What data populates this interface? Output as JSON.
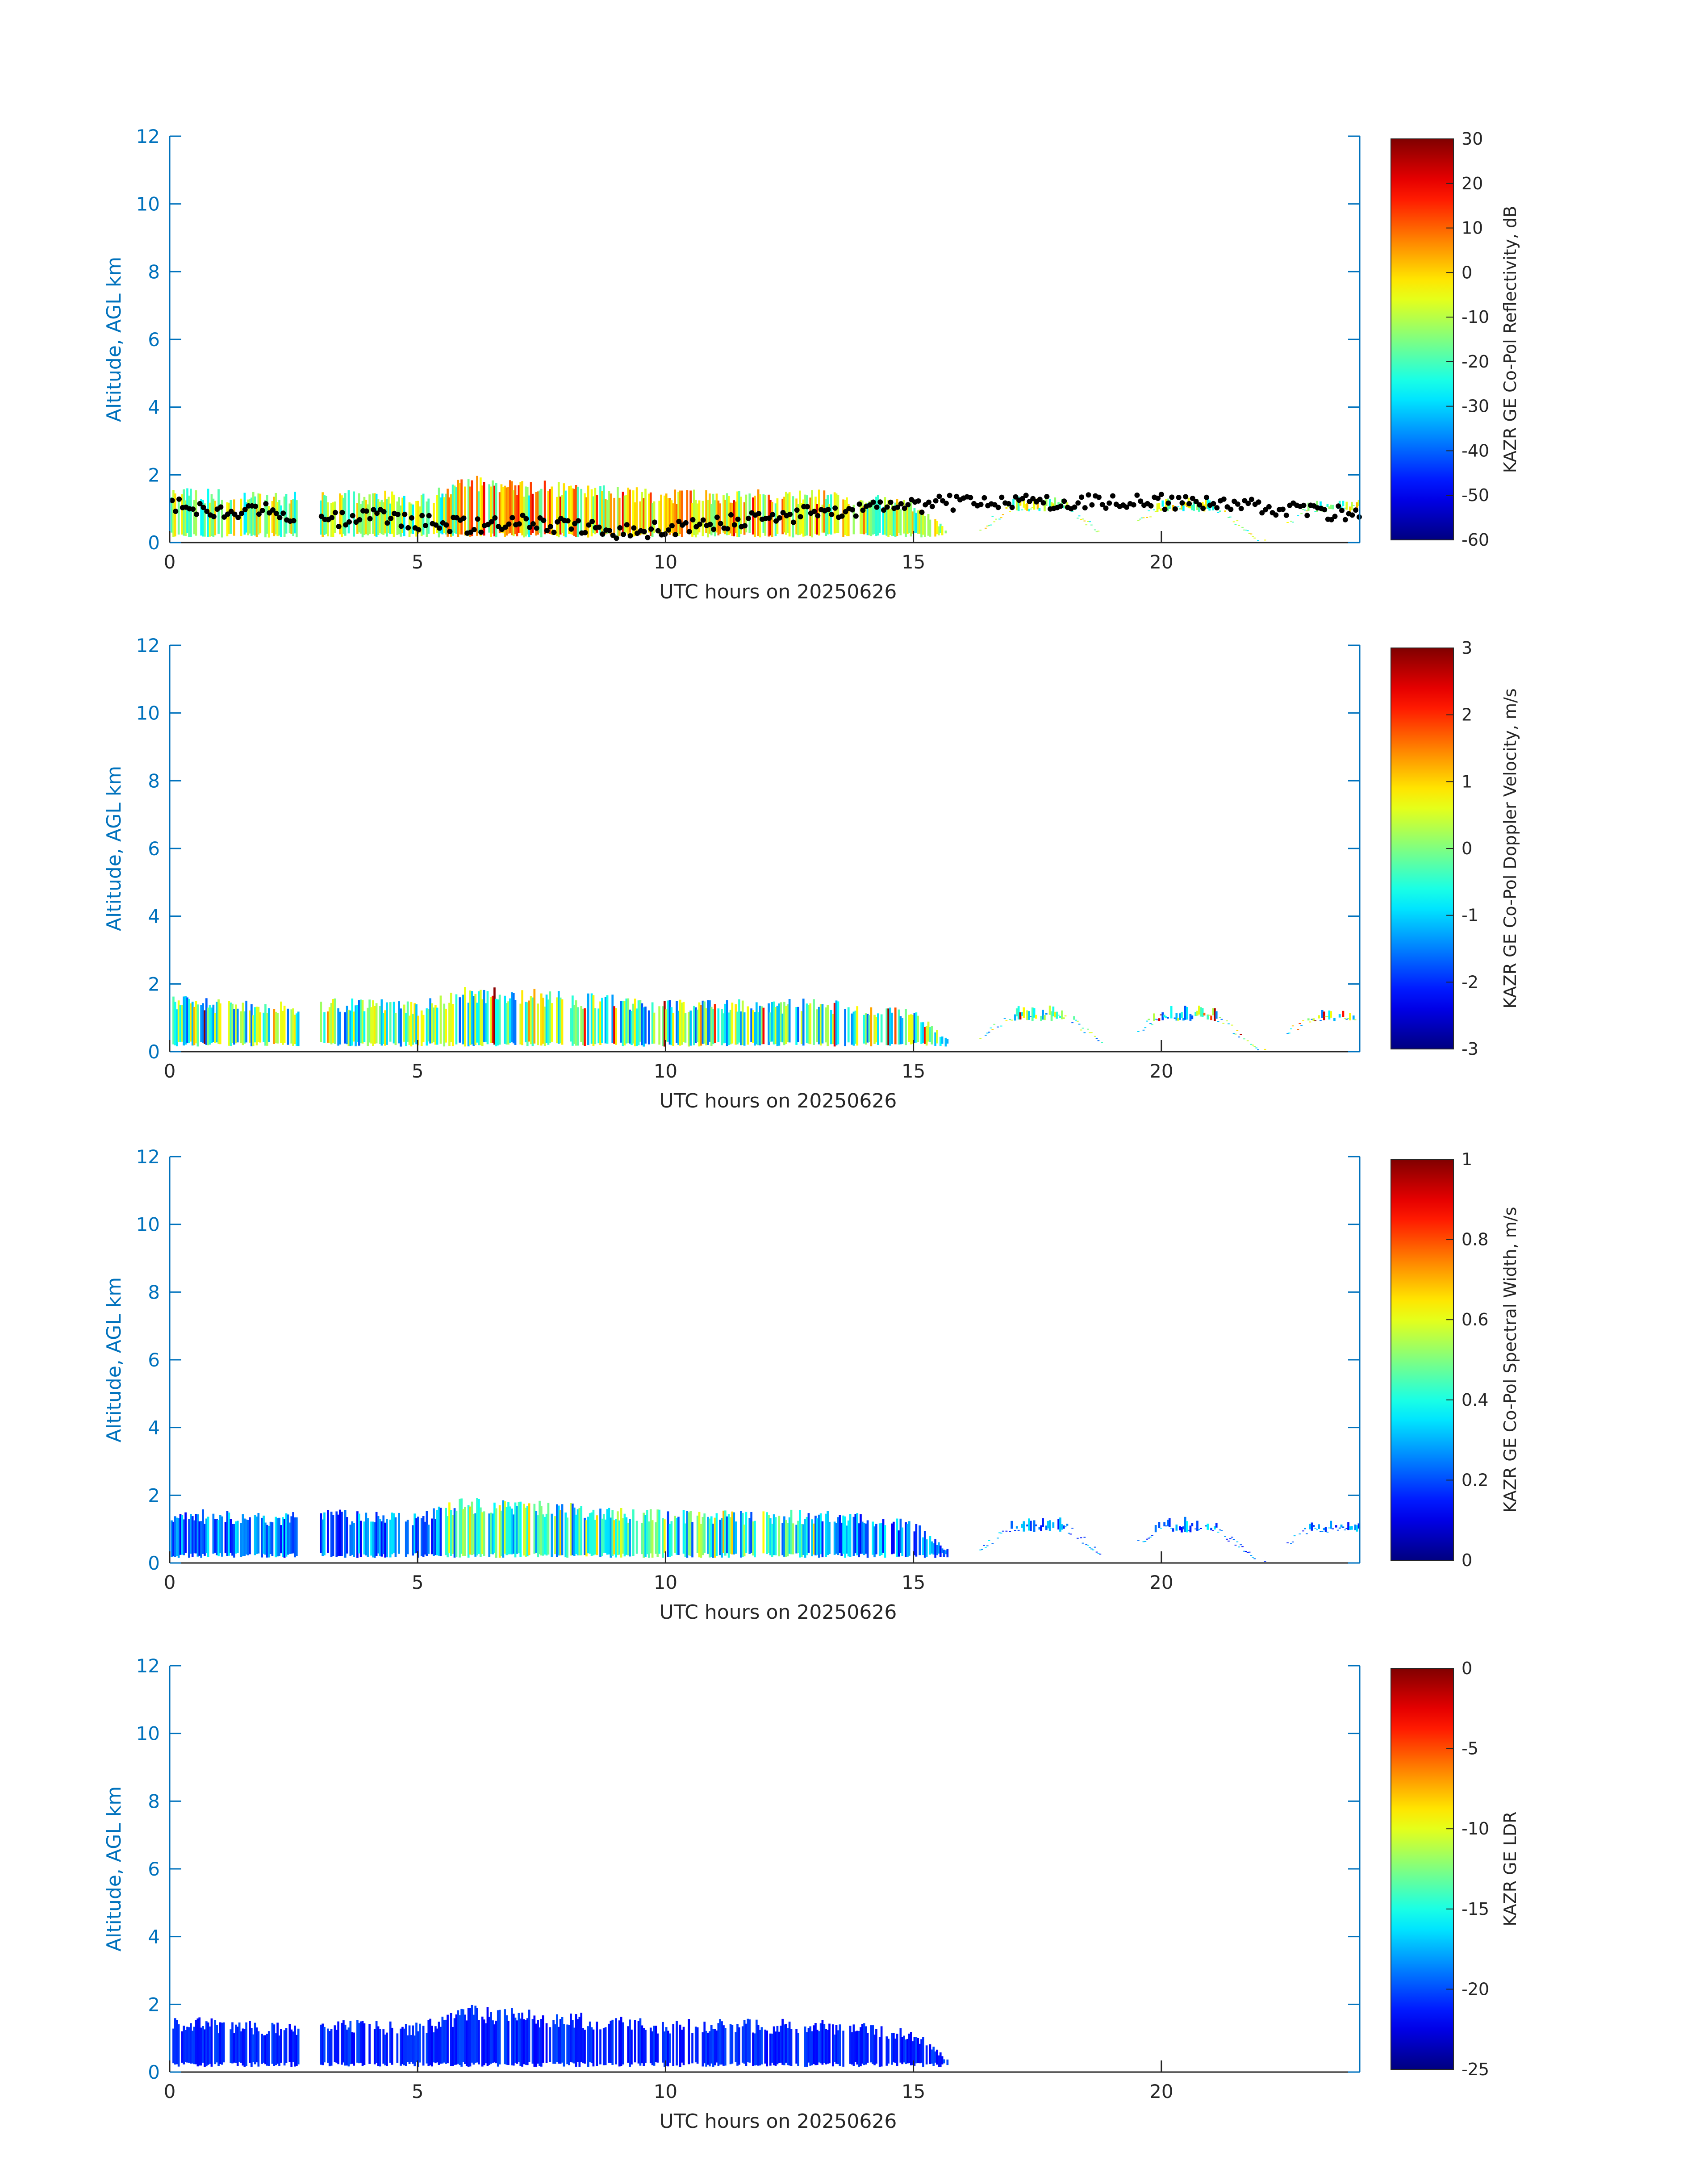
{
  "chart_data": [
    {
      "type": "heatmap",
      "xlabel": "UTC hours on 20250626",
      "ylabel": "Altitude, AGL km",
      "xlim": [
        0,
        24
      ],
      "ylim": [
        0,
        12
      ],
      "xticks": [
        "0",
        "5",
        "10",
        "15",
        "20"
      ],
      "yticks": [
        "0",
        "2",
        "4",
        "6",
        "8",
        "10",
        "12"
      ],
      "colorbar": {
        "label": "KAZR GE Co-Pol Reflectivity, dB",
        "range": [
          -60,
          30
        ],
        "ticks": [
          "-60",
          "-50",
          "-40",
          "-30",
          "-20",
          "-10",
          "0",
          "10",
          "20",
          "30"
        ],
        "colormap": "jet"
      },
      "overlay": "black dots: cloud base height (km)",
      "cloud_top_km_hourly": [
        1.6,
        1.5,
        1.4,
        1.5,
        1.5,
        1.4,
        1.9,
        1.8,
        1.7,
        1.6,
        1.5,
        1.5,
        1.5,
        1.5,
        1.4,
        1.2,
        0.0,
        1.3,
        1.3,
        0.0,
        1.3,
        1.3,
        0.0,
        1.2
      ],
      "cloud_base_km_hourly": [
        1.1,
        0.9,
        1.0,
        0.6,
        0.8,
        0.6,
        0.5,
        0.6,
        0.5,
        0.3,
        0.4,
        0.6,
        0.7,
        0.9,
        1.0,
        1.1,
        1.2,
        1.2,
        1.2,
        1.2,
        1.2,
        1.2,
        1.1,
        0.9
      ]
    },
    {
      "type": "heatmap",
      "xlabel": "UTC hours on 20250626",
      "ylabel": "Altitude, AGL km",
      "xlim": [
        0,
        24
      ],
      "ylim": [
        0,
        12
      ],
      "xticks": [
        "0",
        "5",
        "10",
        "15",
        "20"
      ],
      "yticks": [
        "0",
        "2",
        "4",
        "6",
        "8",
        "10",
        "12"
      ],
      "colorbar": {
        "label": "KAZR GE Co-Pol Doppler Velocity, m/s",
        "range": [
          -3,
          3
        ],
        "ticks": [
          "-3",
          "-2",
          "-1",
          "0",
          "1",
          "2",
          "3"
        ],
        "colormap": "jet"
      }
    },
    {
      "type": "heatmap",
      "xlabel": "UTC hours on 20250626",
      "ylabel": "Altitude, AGL km",
      "xlim": [
        0,
        24
      ],
      "ylim": [
        0,
        12
      ],
      "xticks": [
        "0",
        "5",
        "10",
        "15",
        "20"
      ],
      "yticks": [
        "0",
        "2",
        "4",
        "6",
        "8",
        "10",
        "12"
      ],
      "colorbar": {
        "label": "KAZR GE Co-Pol Spectral Width, m/s",
        "range": [
          0,
          1
        ],
        "ticks": [
          "0",
          "0.2",
          "0.4",
          "0.6",
          "0.8",
          "1"
        ],
        "colormap": "jet"
      }
    },
    {
      "type": "heatmap",
      "xlabel": "UTC hours on 20250626",
      "ylabel": "Altitude, AGL km",
      "xlim": [
        0,
        24
      ],
      "ylim": [
        0,
        12
      ],
      "xticks": [
        "0",
        "5",
        "10",
        "15",
        "20"
      ],
      "yticks": [
        "0",
        "2",
        "4",
        "6",
        "8",
        "10",
        "12"
      ],
      "colorbar": {
        "label": "KAZR GE LDR",
        "range": [
          -25,
          0
        ],
        "ticks": [
          "-25",
          "-20",
          "-15",
          "-10",
          "-5",
          "0"
        ],
        "colormap": "jet"
      }
    }
  ]
}
